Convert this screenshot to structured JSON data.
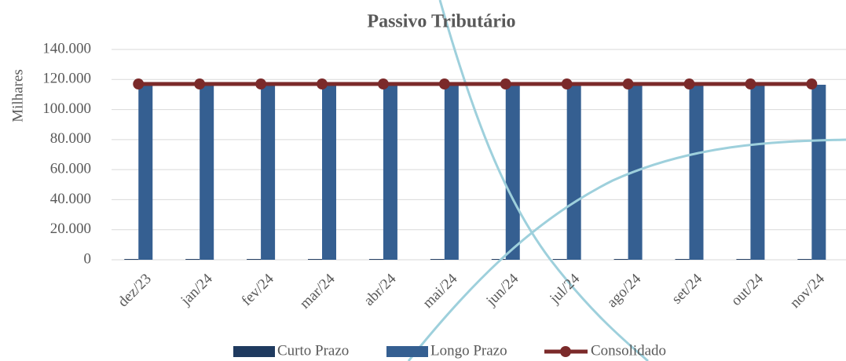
{
  "chart_data": {
    "type": "bar",
    "title": "Passivo Tributário",
    "y_label": "Milhares",
    "categories": [
      "dez/23",
      "jan/24",
      "fev/24",
      "mar/24",
      "abr/24",
      "mai/24",
      "jun/24",
      "jul/24",
      "ago/24",
      "set/24",
      "out/24",
      "nov/24"
    ],
    "series": [
      {
        "name": "Curto Prazo",
        "type": "bar",
        "color": "#1f3a5f",
        "values": [
          500,
          500,
          500,
          500,
          500,
          500,
          500,
          500,
          500,
          500,
          500,
          500
        ]
      },
      {
        "name": "Longo Prazo",
        "type": "bar",
        "color": "#355f91",
        "values": [
          116500,
          116500,
          116500,
          116500,
          116500,
          116500,
          116500,
          116500,
          116500,
          116500,
          116500,
          116500
        ]
      },
      {
        "name": "Consolidado",
        "type": "line",
        "color": "#7b2a2a",
        "values": [
          117000,
          117000,
          117000,
          117000,
          117000,
          117000,
          117000,
          117000,
          117000,
          117000,
          117000,
          117000
        ]
      }
    ],
    "ylim": [
      0,
      140000
    ],
    "yticks": [
      0,
      {
        "value": 20000,
        "label": "20.000"
      },
      {
        "value": 40000,
        "label": "40.000"
      },
      {
        "value": 60000,
        "label": "60.000"
      },
      {
        "value": 80000,
        "label": "80.000"
      },
      {
        "value": 100000,
        "label": "100.000"
      },
      {
        "value": 120000,
        "label": "120.000"
      },
      {
        "value": 140000,
        "label": "140.000"
      }
    ],
    "grid": true,
    "legend": "bottom"
  }
}
